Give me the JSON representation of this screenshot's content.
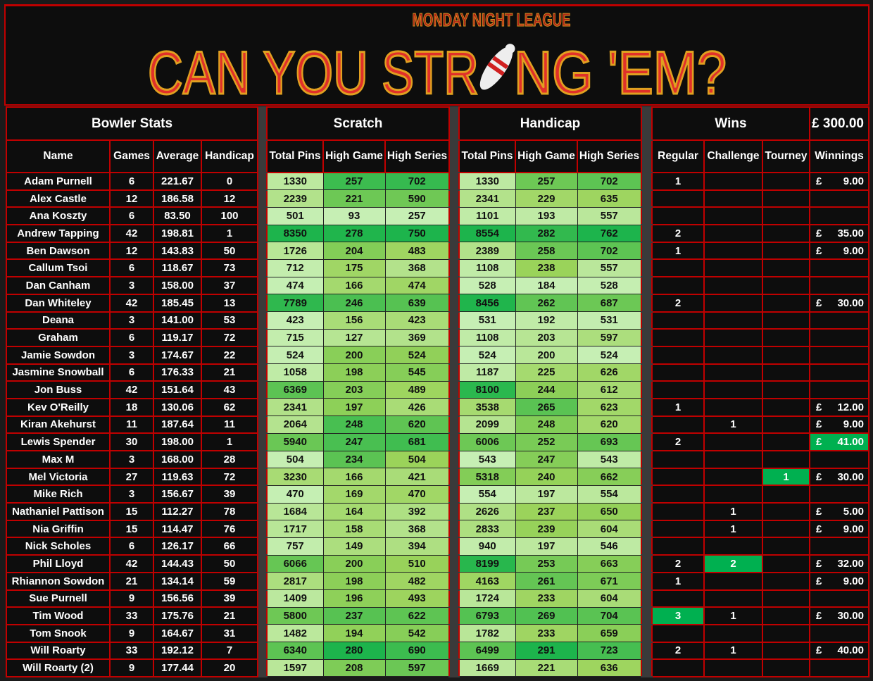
{
  "banner": {
    "subtitle": "MONDAY NIGHT LEAGUE",
    "title_left": "CAN YOU STR",
    "title_right": "NG 'EM?"
  },
  "groups": {
    "bowler": "Bowler Stats",
    "scratch": "Scratch",
    "handicap": "Handicap",
    "wins": "Wins",
    "pot": "£ 300.00"
  },
  "columns": [
    "Name",
    "Games",
    "Average",
    "Handicap",
    "Total Pins",
    "High Game",
    "High Series",
    "Total Pins",
    "High Game",
    "High Series",
    "Regular",
    "Challenge",
    "Tourney",
    "Winnings"
  ],
  "currency": "£",
  "colors": {
    "border": "#c00000",
    "scale_low": "#c6efb4",
    "scale_mid": "#9bd35a",
    "scale_high": "#1db44c",
    "win_highlight": "#00b050"
  },
  "rows": [
    [
      "Adam Purnell",
      "6",
      "221.67",
      "0",
      "1330",
      "257",
      "702",
      "1330",
      "257",
      "702",
      "1",
      "",
      "",
      "9.00"
    ],
    [
      "Alex Castle",
      "12",
      "186.58",
      "12",
      "2239",
      "221",
      "590",
      "2341",
      "229",
      "635",
      "",
      "",
      "",
      ""
    ],
    [
      "Ana Koszty",
      "6",
      "83.50",
      "100",
      "501",
      "93",
      "257",
      "1101",
      "193",
      "557",
      "",
      "",
      "",
      ""
    ],
    [
      "Andrew Tapping",
      "42",
      "198.81",
      "1",
      "8350",
      "278",
      "750",
      "8554",
      "282",
      "762",
      "2",
      "",
      "",
      "35.00"
    ],
    [
      "Ben Dawson",
      "12",
      "143.83",
      "50",
      "1726",
      "204",
      "483",
      "2389",
      "258",
      "702",
      "1",
      "",
      "",
      "9.00"
    ],
    [
      "Callum Tsoi",
      "6",
      "118.67",
      "73",
      "712",
      "175",
      "368",
      "1108",
      "238",
      "557",
      "",
      "",
      "",
      ""
    ],
    [
      "Dan Canham",
      "3",
      "158.00",
      "37",
      "474",
      "166",
      "474",
      "528",
      "184",
      "528",
      "",
      "",
      "",
      ""
    ],
    [
      "Dan Whiteley",
      "42",
      "185.45",
      "13",
      "7789",
      "246",
      "639",
      "8456",
      "262",
      "687",
      "2",
      "",
      "",
      "30.00"
    ],
    [
      "Deana",
      "3",
      "141.00",
      "53",
      "423",
      "156",
      "423",
      "531",
      "192",
      "531",
      "",
      "",
      "",
      ""
    ],
    [
      "Graham",
      "6",
      "119.17",
      "72",
      "715",
      "127",
      "369",
      "1108",
      "203",
      "597",
      "",
      "",
      "",
      ""
    ],
    [
      "Jamie Sowdon",
      "3",
      "174.67",
      "22",
      "524",
      "200",
      "524",
      "524",
      "200",
      "524",
      "",
      "",
      "",
      ""
    ],
    [
      "Jasmine Snowball",
      "6",
      "176.33",
      "21",
      "1058",
      "198",
      "545",
      "1187",
      "225",
      "626",
      "",
      "",
      "",
      ""
    ],
    [
      "Jon Buss",
      "42",
      "151.64",
      "43",
      "6369",
      "203",
      "489",
      "8100",
      "244",
      "612",
      "",
      "",
      "",
      ""
    ],
    [
      "Kev O'Reilly",
      "18",
      "130.06",
      "62",
      "2341",
      "197",
      "426",
      "3538",
      "265",
      "623",
      "1",
      "",
      "",
      "12.00"
    ],
    [
      "Kiran Akehurst",
      "11",
      "187.64",
      "11",
      "2064",
      "248",
      "620",
      "2099",
      "248",
      "620",
      "",
      "1",
      "",
      "9.00"
    ],
    [
      "Lewis Spender",
      "30",
      "198.00",
      "1",
      "5940",
      "247",
      "681",
      "6006",
      "252",
      "693",
      "2",
      "",
      "",
      "41.00"
    ],
    [
      "Max M",
      "3",
      "168.00",
      "28",
      "504",
      "234",
      "504",
      "543",
      "247",
      "543",
      "",
      "",
      "",
      ""
    ],
    [
      "Mel Victoria",
      "27",
      "119.63",
      "72",
      "3230",
      "166",
      "421",
      "5318",
      "240",
      "662",
      "",
      "",
      "1",
      "30.00"
    ],
    [
      "Mike Rich",
      "3",
      "156.67",
      "39",
      "470",
      "169",
      "470",
      "554",
      "197",
      "554",
      "",
      "",
      "",
      ""
    ],
    [
      "Nathaniel Pattison",
      "15",
      "112.27",
      "78",
      "1684",
      "164",
      "392",
      "2626",
      "237",
      "650",
      "",
      "1",
      "",
      "5.00"
    ],
    [
      "Nia Griffin",
      "15",
      "114.47",
      "76",
      "1717",
      "158",
      "368",
      "2833",
      "239",
      "604",
      "",
      "1",
      "",
      "9.00"
    ],
    [
      "Nick Scholes",
      "6",
      "126.17",
      "66",
      "757",
      "149",
      "394",
      "940",
      "197",
      "546",
      "",
      "",
      "",
      ""
    ],
    [
      "Phil Lloyd",
      "42",
      "144.43",
      "50",
      "6066",
      "200",
      "510",
      "8199",
      "253",
      "663",
      "2",
      "2",
      "",
      "32.00"
    ],
    [
      "Rhiannon Sowdon",
      "21",
      "134.14",
      "59",
      "2817",
      "198",
      "482",
      "4163",
      "261",
      "671",
      "1",
      "",
      "",
      "9.00"
    ],
    [
      "Sue Purnell",
      "9",
      "156.56",
      "39",
      "1409",
      "196",
      "493",
      "1724",
      "233",
      "604",
      "",
      "",
      "",
      ""
    ],
    [
      "Tim Wood",
      "33",
      "175.76",
      "21",
      "5800",
      "237",
      "622",
      "6793",
      "269",
      "704",
      "3",
      "1",
      "",
      "30.00"
    ],
    [
      "Tom Snook",
      "9",
      "164.67",
      "31",
      "1482",
      "194",
      "542",
      "1782",
      "233",
      "659",
      "",
      "",
      "",
      ""
    ],
    [
      "Will Roarty",
      "33",
      "192.12",
      "7",
      "6340",
      "280",
      "690",
      "6499",
      "291",
      "723",
      "2",
      "1",
      "",
      "40.00"
    ],
    [
      "Will Roarty (2)",
      "9",
      "177.44",
      "20",
      "1597",
      "208",
      "597",
      "1669",
      "221",
      "636",
      "",
      "",
      "",
      ""
    ]
  ]
}
